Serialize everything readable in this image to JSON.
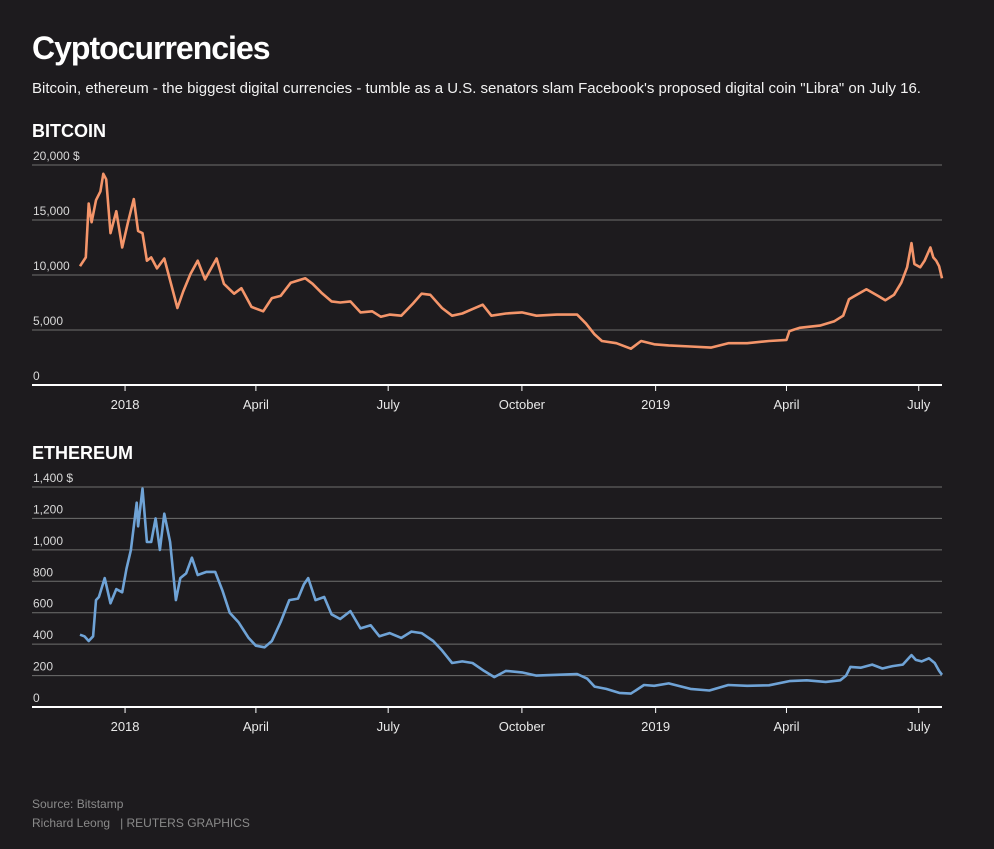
{
  "header": {
    "title": "Cyptocurrencies",
    "subtitle": "Bitcoin, ethereum - the biggest digital currencies - tumble as a U.S. senators slam Facebook's proposed digital coin \"Libra\" on July 16."
  },
  "footer": {
    "source": "Source: Bitstamp",
    "author": "Richard Leong",
    "agency": "| REUTERS GRAPHICS"
  },
  "colors": {
    "bitcoin": "#f4956a",
    "ethereum": "#6fa3d6",
    "grid": "#6f6f6f",
    "axis": "#ffffff"
  },
  "chart_data": [
    {
      "type": "line",
      "title": "BITCOIN",
      "series_name": "Bitcoin",
      "xlabel": "",
      "ylabel": "",
      "y_unit": "$",
      "ylim": [
        0,
        20000
      ],
      "y_ticks": [
        0,
        5000,
        10000,
        15000,
        20000
      ],
      "y_tick_labels": [
        "0",
        "5,000",
        "10,000",
        "15,000",
        "20,000 $"
      ],
      "x_range": [
        "2017-12-01",
        "2019-07-17"
      ],
      "x_ticks": [
        {
          "date": "2018-01-01",
          "label": "2018"
        },
        {
          "date": "2018-04-01",
          "label": "April"
        },
        {
          "date": "2018-07-01",
          "label": "July"
        },
        {
          "date": "2018-10-01",
          "label": "October"
        },
        {
          "date": "2019-01-01",
          "label": "2019"
        },
        {
          "date": "2019-04-01",
          "label": "April"
        },
        {
          "date": "2019-07-01",
          "label": "July"
        }
      ],
      "points": [
        {
          "x": "2017-12-01",
          "y": 10800
        },
        {
          "x": "2017-12-05",
          "y": 11600
        },
        {
          "x": "2017-12-07",
          "y": 16500
        },
        {
          "x": "2017-12-09",
          "y": 14800
        },
        {
          "x": "2017-12-12",
          "y": 16800
        },
        {
          "x": "2017-12-15",
          "y": 17600
        },
        {
          "x": "2017-12-17",
          "y": 19200
        },
        {
          "x": "2017-12-19",
          "y": 18700
        },
        {
          "x": "2017-12-22",
          "y": 13800
        },
        {
          "x": "2017-12-26",
          "y": 15800
        },
        {
          "x": "2017-12-30",
          "y": 12500
        },
        {
          "x": "2018-01-03",
          "y": 14800
        },
        {
          "x": "2018-01-07",
          "y": 16900
        },
        {
          "x": "2018-01-10",
          "y": 14000
        },
        {
          "x": "2018-01-13",
          "y": 13800
        },
        {
          "x": "2018-01-16",
          "y": 11300
        },
        {
          "x": "2018-01-19",
          "y": 11600
        },
        {
          "x": "2018-01-23",
          "y": 10600
        },
        {
          "x": "2018-01-28",
          "y": 11500
        },
        {
          "x": "2018-02-02",
          "y": 9000
        },
        {
          "x": "2018-02-06",
          "y": 7000
        },
        {
          "x": "2018-02-10",
          "y": 8500
        },
        {
          "x": "2018-02-15",
          "y": 10100
        },
        {
          "x": "2018-02-20",
          "y": 11300
        },
        {
          "x": "2018-02-25",
          "y": 9600
        },
        {
          "x": "2018-03-05",
          "y": 11500
        },
        {
          "x": "2018-03-10",
          "y": 9200
        },
        {
          "x": "2018-03-17",
          "y": 8300
        },
        {
          "x": "2018-03-22",
          "y": 8800
        },
        {
          "x": "2018-03-29",
          "y": 7100
        },
        {
          "x": "2018-04-06",
          "y": 6700
        },
        {
          "x": "2018-04-12",
          "y": 7900
        },
        {
          "x": "2018-04-18",
          "y": 8100
        },
        {
          "x": "2018-04-25",
          "y": 9300
        },
        {
          "x": "2018-05-05",
          "y": 9700
        },
        {
          "x": "2018-05-10",
          "y": 9200
        },
        {
          "x": "2018-05-16",
          "y": 8400
        },
        {
          "x": "2018-05-23",
          "y": 7600
        },
        {
          "x": "2018-05-29",
          "y": 7500
        },
        {
          "x": "2018-06-05",
          "y": 7600
        },
        {
          "x": "2018-06-12",
          "y": 6600
        },
        {
          "x": "2018-06-20",
          "y": 6700
        },
        {
          "x": "2018-06-26",
          "y": 6200
        },
        {
          "x": "2018-07-02",
          "y": 6400
        },
        {
          "x": "2018-07-10",
          "y": 6300
        },
        {
          "x": "2018-07-18",
          "y": 7400
        },
        {
          "x": "2018-07-24",
          "y": 8300
        },
        {
          "x": "2018-07-30",
          "y": 8200
        },
        {
          "x": "2018-08-07",
          "y": 7000
        },
        {
          "x": "2018-08-14",
          "y": 6300
        },
        {
          "x": "2018-08-21",
          "y": 6500
        },
        {
          "x": "2018-08-28",
          "y": 6900
        },
        {
          "x": "2018-09-04",
          "y": 7300
        },
        {
          "x": "2018-09-10",
          "y": 6300
        },
        {
          "x": "2018-09-20",
          "y": 6500
        },
        {
          "x": "2018-10-01",
          "y": 6600
        },
        {
          "x": "2018-10-11",
          "y": 6300
        },
        {
          "x": "2018-10-25",
          "y": 6400
        },
        {
          "x": "2018-11-08",
          "y": 6400
        },
        {
          "x": "2018-11-14",
          "y": 5600
        },
        {
          "x": "2018-11-20",
          "y": 4600
        },
        {
          "x": "2018-11-25",
          "y": 4000
        },
        {
          "x": "2018-12-05",
          "y": 3800
        },
        {
          "x": "2018-12-15",
          "y": 3300
        },
        {
          "x": "2018-12-22",
          "y": 4000
        },
        {
          "x": "2018-12-31",
          "y": 3700
        },
        {
          "x": "2019-01-10",
          "y": 3600
        },
        {
          "x": "2019-01-25",
          "y": 3500
        },
        {
          "x": "2019-02-08",
          "y": 3400
        },
        {
          "x": "2019-02-20",
          "y": 3800
        },
        {
          "x": "2019-03-05",
          "y": 3800
        },
        {
          "x": "2019-03-20",
          "y": 4000
        },
        {
          "x": "2019-04-01",
          "y": 4100
        },
        {
          "x": "2019-04-03",
          "y": 4900
        },
        {
          "x": "2019-04-10",
          "y": 5200
        },
        {
          "x": "2019-04-24",
          "y": 5400
        },
        {
          "x": "2019-05-04",
          "y": 5800
        },
        {
          "x": "2019-05-10",
          "y": 6300
        },
        {
          "x": "2019-05-14",
          "y": 7800
        },
        {
          "x": "2019-05-18",
          "y": 8100
        },
        {
          "x": "2019-05-26",
          "y": 8700
        },
        {
          "x": "2019-06-03",
          "y": 8100
        },
        {
          "x": "2019-06-08",
          "y": 7700
        },
        {
          "x": "2019-06-14",
          "y": 8200
        },
        {
          "x": "2019-06-19",
          "y": 9300
        },
        {
          "x": "2019-06-23",
          "y": 10700
        },
        {
          "x": "2019-06-26",
          "y": 12900
        },
        {
          "x": "2019-06-28",
          "y": 11000
        },
        {
          "x": "2019-07-02",
          "y": 10700
        },
        {
          "x": "2019-07-05",
          "y": 11300
        },
        {
          "x": "2019-07-09",
          "y": 12500
        },
        {
          "x": "2019-07-11",
          "y": 11600
        },
        {
          "x": "2019-07-13",
          "y": 11300
        },
        {
          "x": "2019-07-15",
          "y": 10800
        },
        {
          "x": "2019-07-17",
          "y": 9700
        }
      ]
    },
    {
      "type": "line",
      "title": "ETHEREUM",
      "series_name": "Ethereum",
      "xlabel": "",
      "ylabel": "",
      "y_unit": "$",
      "ylim": [
        0,
        1400
      ],
      "y_ticks": [
        0,
        200,
        400,
        600,
        800,
        1000,
        1200,
        1400
      ],
      "y_tick_labels": [
        "0",
        "200",
        "400",
        "600",
        "800",
        "1,000",
        "1,200",
        "1,400 $"
      ],
      "x_range": [
        "2017-12-01",
        "2019-07-17"
      ],
      "x_ticks": [
        {
          "date": "2018-01-01",
          "label": "2018"
        },
        {
          "date": "2018-04-01",
          "label": "April"
        },
        {
          "date": "2018-07-01",
          "label": "July"
        },
        {
          "date": "2018-10-01",
          "label": "October"
        },
        {
          "date": "2019-01-01",
          "label": "2019"
        },
        {
          "date": "2019-04-01",
          "label": "April"
        },
        {
          "date": "2019-07-01",
          "label": "July"
        }
      ],
      "points": [
        {
          "x": "2017-12-01",
          "y": 460
        },
        {
          "x": "2017-12-04",
          "y": 450
        },
        {
          "x": "2017-12-07",
          "y": 420
        },
        {
          "x": "2017-12-10",
          "y": 450
        },
        {
          "x": "2017-12-12",
          "y": 680
        },
        {
          "x": "2017-12-14",
          "y": 700
        },
        {
          "x": "2017-12-18",
          "y": 820
        },
        {
          "x": "2017-12-22",
          "y": 660
        },
        {
          "x": "2017-12-26",
          "y": 750
        },
        {
          "x": "2017-12-30",
          "y": 730
        },
        {
          "x": "2018-01-02",
          "y": 880
        },
        {
          "x": "2018-01-05",
          "y": 1000
        },
        {
          "x": "2018-01-09",
          "y": 1300
        },
        {
          "x": "2018-01-10",
          "y": 1150
        },
        {
          "x": "2018-01-13",
          "y": 1390
        },
        {
          "x": "2018-01-16",
          "y": 1050
        },
        {
          "x": "2018-01-19",
          "y": 1050
        },
        {
          "x": "2018-01-22",
          "y": 1200
        },
        {
          "x": "2018-01-25",
          "y": 1000
        },
        {
          "x": "2018-01-28",
          "y": 1230
        },
        {
          "x": "2018-02-01",
          "y": 1050
        },
        {
          "x": "2018-02-05",
          "y": 680
        },
        {
          "x": "2018-02-08",
          "y": 820
        },
        {
          "x": "2018-02-12",
          "y": 850
        },
        {
          "x": "2018-02-16",
          "y": 950
        },
        {
          "x": "2018-02-20",
          "y": 840
        },
        {
          "x": "2018-02-26",
          "y": 860
        },
        {
          "x": "2018-03-04",
          "y": 860
        },
        {
          "x": "2018-03-09",
          "y": 740
        },
        {
          "x": "2018-03-14",
          "y": 600
        },
        {
          "x": "2018-03-20",
          "y": 540
        },
        {
          "x": "2018-03-27",
          "y": 440
        },
        {
          "x": "2018-04-01",
          "y": 390
        },
        {
          "x": "2018-04-07",
          "y": 380
        },
        {
          "x": "2018-04-12",
          "y": 420
        },
        {
          "x": "2018-04-18",
          "y": 540
        },
        {
          "x": "2018-04-24",
          "y": 680
        },
        {
          "x": "2018-04-30",
          "y": 690
        },
        {
          "x": "2018-05-04",
          "y": 780
        },
        {
          "x": "2018-05-07",
          "y": 820
        },
        {
          "x": "2018-05-12",
          "y": 680
        },
        {
          "x": "2018-05-18",
          "y": 700
        },
        {
          "x": "2018-05-23",
          "y": 590
        },
        {
          "x": "2018-05-29",
          "y": 560
        },
        {
          "x": "2018-06-05",
          "y": 610
        },
        {
          "x": "2018-06-12",
          "y": 500
        },
        {
          "x": "2018-06-19",
          "y": 520
        },
        {
          "x": "2018-06-25",
          "y": 450
        },
        {
          "x": "2018-07-02",
          "y": 470
        },
        {
          "x": "2018-07-10",
          "y": 440
        },
        {
          "x": "2018-07-17",
          "y": 480
        },
        {
          "x": "2018-07-24",
          "y": 470
        },
        {
          "x": "2018-08-01",
          "y": 420
        },
        {
          "x": "2018-08-07",
          "y": 360
        },
        {
          "x": "2018-08-14",
          "y": 280
        },
        {
          "x": "2018-08-21",
          "y": 290
        },
        {
          "x": "2018-08-28",
          "y": 280
        },
        {
          "x": "2018-09-05",
          "y": 230
        },
        {
          "x": "2018-09-12",
          "y": 190
        },
        {
          "x": "2018-09-20",
          "y": 230
        },
        {
          "x": "2018-10-01",
          "y": 220
        },
        {
          "x": "2018-10-11",
          "y": 200
        },
        {
          "x": "2018-10-25",
          "y": 205
        },
        {
          "x": "2018-11-08",
          "y": 210
        },
        {
          "x": "2018-11-15",
          "y": 180
        },
        {
          "x": "2018-11-20",
          "y": 130
        },
        {
          "x": "2018-11-28",
          "y": 115
        },
        {
          "x": "2018-12-07",
          "y": 90
        },
        {
          "x": "2018-12-15",
          "y": 85
        },
        {
          "x": "2018-12-24",
          "y": 140
        },
        {
          "x": "2018-12-31",
          "y": 135
        },
        {
          "x": "2019-01-10",
          "y": 150
        },
        {
          "x": "2019-01-25",
          "y": 115
        },
        {
          "x": "2019-02-07",
          "y": 105
        },
        {
          "x": "2019-02-20",
          "y": 140
        },
        {
          "x": "2019-03-05",
          "y": 135
        },
        {
          "x": "2019-03-20",
          "y": 138
        },
        {
          "x": "2019-04-03",
          "y": 165
        },
        {
          "x": "2019-04-15",
          "y": 170
        },
        {
          "x": "2019-04-28",
          "y": 160
        },
        {
          "x": "2019-05-08",
          "y": 170
        },
        {
          "x": "2019-05-12",
          "y": 200
        },
        {
          "x": "2019-05-15",
          "y": 255
        },
        {
          "x": "2019-05-22",
          "y": 250
        },
        {
          "x": "2019-05-30",
          "y": 270
        },
        {
          "x": "2019-06-06",
          "y": 245
        },
        {
          "x": "2019-06-13",
          "y": 260
        },
        {
          "x": "2019-06-20",
          "y": 270
        },
        {
          "x": "2019-06-24",
          "y": 310
        },
        {
          "x": "2019-06-26",
          "y": 330
        },
        {
          "x": "2019-06-29",
          "y": 300
        },
        {
          "x": "2019-07-03",
          "y": 290
        },
        {
          "x": "2019-07-08",
          "y": 310
        },
        {
          "x": "2019-07-12",
          "y": 280
        },
        {
          "x": "2019-07-15",
          "y": 230
        },
        {
          "x": "2019-07-17",
          "y": 205
        }
      ]
    }
  ]
}
